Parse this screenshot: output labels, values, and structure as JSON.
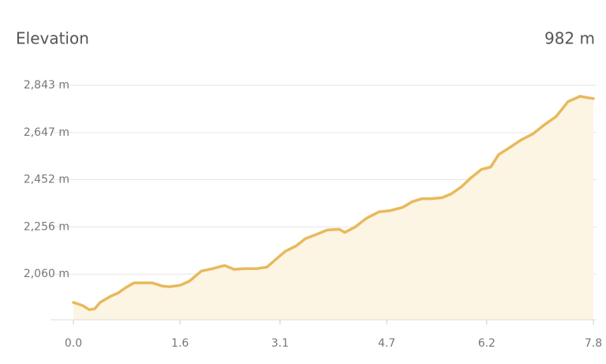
{
  "chart_data": {
    "type": "area",
    "title": "Elevation",
    "annotation": "982 m",
    "x": [
      0,
      0.14,
      0.24,
      0.32,
      0.4,
      0.56,
      0.67,
      0.79,
      0.91,
      1.03,
      1.18,
      1.33,
      1.44,
      1.6,
      1.74,
      1.92,
      2.09,
      2.27,
      2.41,
      2.57,
      2.75,
      2.9,
      3.04,
      3.18,
      3.34,
      3.48,
      3.63,
      3.81,
      3.99,
      4.07,
      4.23,
      4.4,
      4.58,
      4.76,
      4.94,
      5.08,
      5.23,
      5.37,
      5.53,
      5.67,
      5.82,
      5.97,
      6.12,
      6.26,
      6.38,
      6.53,
      6.71,
      6.89,
      7.07,
      7.24,
      7.42,
      7.6,
      7.72,
      7.8
    ],
    "values": [
      1943,
      1930,
      1913,
      1916,
      1943,
      1969,
      1982,
      2005,
      2024,
      2024,
      2024,
      2011,
      2008,
      2014,
      2031,
      2073,
      2083,
      2096,
      2080,
      2083,
      2083,
      2089,
      2122,
      2155,
      2177,
      2207,
      2223,
      2243,
      2246,
      2233,
      2256,
      2292,
      2318,
      2324,
      2337,
      2360,
      2373,
      2373,
      2377,
      2393,
      2422,
      2461,
      2494,
      2504,
      2556,
      2582,
      2615,
      2641,
      2680,
      2713,
      2775,
      2797,
      2791,
      2788
    ],
    "color": "#e8b95c",
    "fill_color": "#fdf5e3",
    "xlim": [
      0,
      7.8
    ],
    "xticks": [
      {
        "value": 0,
        "label": "0.0"
      },
      1.6,
      3.1,
      4.7,
      6.2,
      7.8
    ],
    "ylim": [
      1871,
      2869
    ],
    "yticks": [
      {
        "value": 2060,
        "label": "2,060 m"
      },
      {
        "value": 2256,
        "label": "2,256 m"
      },
      {
        "value": 2452,
        "label": "2,452 m"
      },
      {
        "value": 2647,
        "label": "2,647 m"
      },
      {
        "value": 2843,
        "label": "2,843 m"
      }
    ],
    "grid": true
  }
}
